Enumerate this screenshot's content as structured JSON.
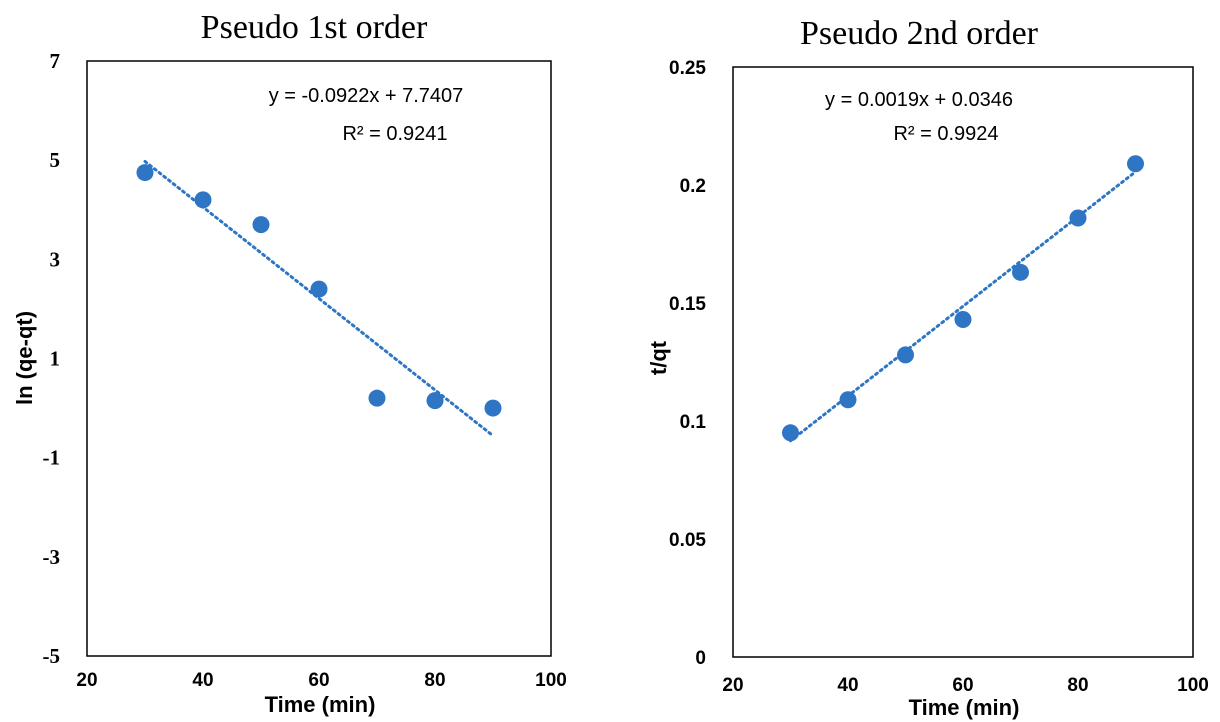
{
  "chart_data": [
    {
      "type": "scatter",
      "title": "Pseudo 1st order",
      "xlabel": "Time (min)",
      "ylabel": "ln (qe-qt)",
      "xlim": [
        20,
        100
      ],
      "ylim": [
        -5,
        7
      ],
      "xticks": [
        "20",
        "40",
        "60",
        "80",
        "100"
      ],
      "yticks": [
        "-5",
        "-3",
        "-1",
        "1",
        "3",
        "5",
        "7"
      ],
      "xtick_values": [
        20,
        40,
        60,
        80,
        100
      ],
      "ytick_values": [
        -5,
        -3,
        -1,
        1,
        3,
        5,
        7
      ],
      "grid": false,
      "series": [
        {
          "x": [
            30,
            40,
            50,
            60,
            70,
            80,
            90
          ],
          "y": [
            4.75,
            4.2,
            3.7,
            2.4,
            0.2,
            0.15,
            0.0
          ]
        }
      ],
      "trendline": {
        "slope": -0.0922,
        "intercept": 7.7407,
        "x_range": [
          30,
          90
        ]
      },
      "annotations": {
        "equation": "y = -0.0922x + 7.7407",
        "r2": "R² = 0.9241"
      },
      "colors": {
        "marker": "#2e75c4",
        "trendline": "#2e75c4"
      }
    },
    {
      "type": "scatter",
      "title": "Pseudo 2nd order",
      "xlabel": "Time (min)",
      "ylabel": "t/qt",
      "xlim": [
        20,
        100
      ],
      "ylim": [
        0,
        0.25
      ],
      "xticks": [
        "20",
        "40",
        "60",
        "80",
        "100"
      ],
      "yticks": [
        "0",
        "0.05",
        "0.1",
        "0.15",
        "0.2",
        "0.25"
      ],
      "xtick_values": [
        20,
        40,
        60,
        80,
        100
      ],
      "ytick_values": [
        0,
        0.05,
        0.1,
        0.15,
        0.2,
        0.25
      ],
      "grid": false,
      "series": [
        {
          "x": [
            30,
            40,
            50,
            60,
            70,
            80,
            90
          ],
          "y": [
            0.095,
            0.109,
            0.128,
            0.143,
            0.163,
            0.186,
            0.209
          ]
        }
      ],
      "trendline": {
        "slope": 0.0019,
        "intercept": 0.0346,
        "x_range": [
          30,
          90
        ]
      },
      "annotations": {
        "equation": "y = 0.0019x + 0.0346",
        "r2": "R² = 0.9924"
      },
      "colors": {
        "marker": "#2e75c4",
        "trendline": "#2e75c4"
      }
    }
  ]
}
